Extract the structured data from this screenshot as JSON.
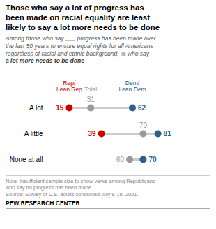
{
  "chart_data": {
    "type": "dot",
    "title": "Those who say a lot of progress has\nbeen made on racial equality are least\nlikely to say a lot more needs to be done",
    "subtitle": [
      "Among those who say ___ progress has been made over",
      "the last 50 years to ensure equal rights for all Americans",
      "regardless of racial and ethnic background, % who say ",
      "a lot more needs to be done"
    ],
    "categories": [
      "A lot",
      "A little",
      "None at all"
    ],
    "series": [
      {
        "name": "Rep/\nLean Rep",
        "color": "#cc0000",
        "values": [
          15,
          39,
          null
        ]
      },
      {
        "name": "Total",
        "color": "#999999",
        "values": [
          31,
          70,
          60
        ]
      },
      {
        "name": "Dem/\nLean Dem",
        "color": "#2e5f8a",
        "values": [
          62,
          81,
          70
        ]
      }
    ],
    "xlim": [
      0,
      110
    ],
    "data_labels": true,
    "tick_labels": "y",
    "notes": [
      "Note: Insufficient sample size to show views among Republicans",
      "who say no progress has been made.",
      "Source: Survey of U.S. adults conducted July 8-18, 2021."
    ],
    "source": "PEW RESEARCH CENTER"
  }
}
